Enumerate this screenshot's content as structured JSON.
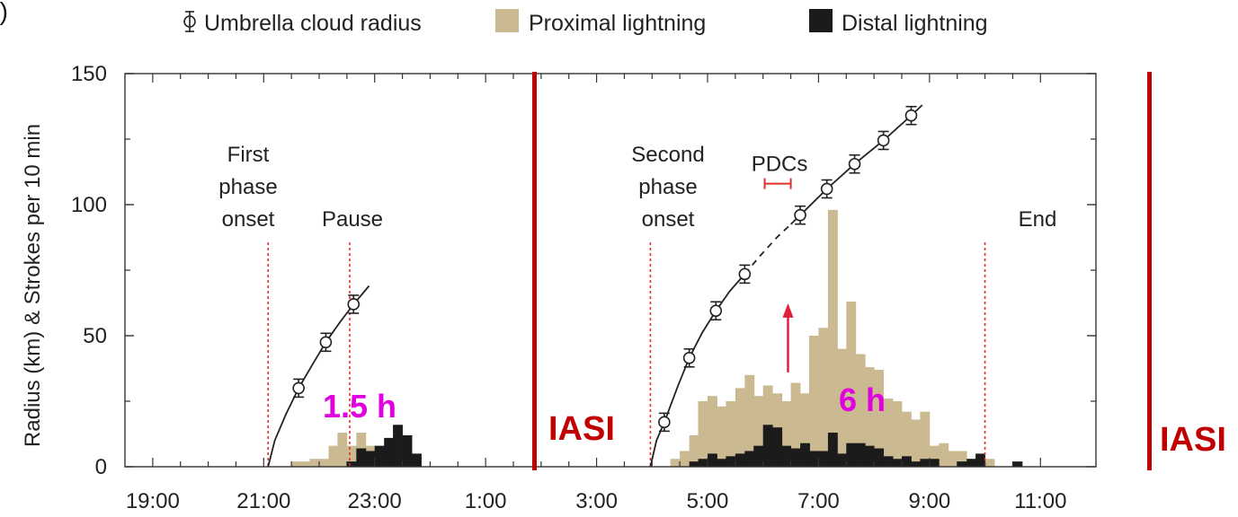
{
  "panel_label": "d)",
  "colors": {
    "proximal": "#cbb991",
    "distal": "#1b1b1b",
    "phase_line": "#e0302a",
    "iasi": "#c00000",
    "duration_text": "#e000e0",
    "arrow": "#e0203a",
    "radius": "#222222"
  },
  "legend": {
    "radius": "Umbrella cloud radius",
    "proximal": "Proximal lightning",
    "distal": "Distal lightning"
  },
  "chart_data": {
    "type": "bar",
    "ylabel": "Radius (km) & Strokes per 10 min",
    "ylim": [
      0,
      150
    ],
    "yticks": [
      0,
      50,
      100,
      150
    ],
    "xticks": [
      {
        "t": 19,
        "label": "19:00"
      },
      {
        "t": 21,
        "label": "21:00"
      },
      {
        "t": 23,
        "label": "23:00"
      },
      {
        "t": 25,
        "label": "1:00"
      },
      {
        "t": 27,
        "label": "3:00"
      },
      {
        "t": 29,
        "label": "5:00"
      },
      {
        "t": 31,
        "label": "7:00"
      },
      {
        "t": 33,
        "label": "9:00"
      },
      {
        "t": 35,
        "label": "11:00"
      }
    ],
    "bin_hours": 0.16667,
    "proximal_bins": [
      {
        "t": 21.5,
        "v": 2
      },
      {
        "t": 21.67,
        "v": 2
      },
      {
        "t": 21.83,
        "v": 3
      },
      {
        "t": 22.0,
        "v": 3
      },
      {
        "t": 22.17,
        "v": 8
      },
      {
        "t": 22.33,
        "v": 13
      },
      {
        "t": 22.5,
        "v": 8
      },
      {
        "t": 22.67,
        "v": 13
      },
      {
        "t": 22.83,
        "v": 8
      },
      {
        "t": 23.0,
        "v": 3
      },
      {
        "t": 28.33,
        "v": 3
      },
      {
        "t": 28.5,
        "v": 6
      },
      {
        "t": 28.67,
        "v": 12
      },
      {
        "t": 28.83,
        "v": 25
      },
      {
        "t": 29.0,
        "v": 27
      },
      {
        "t": 29.17,
        "v": 23
      },
      {
        "t": 29.33,
        "v": 25
      },
      {
        "t": 29.5,
        "v": 30
      },
      {
        "t": 29.67,
        "v": 35
      },
      {
        "t": 29.83,
        "v": 27
      },
      {
        "t": 30.0,
        "v": 31
      },
      {
        "t": 30.17,
        "v": 28
      },
      {
        "t": 30.33,
        "v": 25
      },
      {
        "t": 30.5,
        "v": 32
      },
      {
        "t": 30.67,
        "v": 28
      },
      {
        "t": 30.83,
        "v": 50
      },
      {
        "t": 31.0,
        "v": 53
      },
      {
        "t": 31.17,
        "v": 98
      },
      {
        "t": 31.33,
        "v": 45
      },
      {
        "t": 31.5,
        "v": 63
      },
      {
        "t": 31.67,
        "v": 43
      },
      {
        "t": 31.83,
        "v": 38
      },
      {
        "t": 32.0,
        "v": 37
      },
      {
        "t": 32.17,
        "v": 26
      },
      {
        "t": 32.33,
        "v": 25
      },
      {
        "t": 32.5,
        "v": 21
      },
      {
        "t": 32.67,
        "v": 18
      },
      {
        "t": 32.83,
        "v": 21
      },
      {
        "t": 33.0,
        "v": 8
      },
      {
        "t": 33.17,
        "v": 9
      },
      {
        "t": 33.33,
        "v": 6
      },
      {
        "t": 33.5,
        "v": 6
      },
      {
        "t": 33.67,
        "v": 3
      },
      {
        "t": 33.83,
        "v": 4
      },
      {
        "t": 34.0,
        "v": 3
      }
    ],
    "distal_bins": [
      {
        "t": 22.5,
        "v": 2
      },
      {
        "t": 22.67,
        "v": 7
      },
      {
        "t": 22.83,
        "v": 6
      },
      {
        "t": 23.0,
        "v": 8
      },
      {
        "t": 23.17,
        "v": 11
      },
      {
        "t": 23.33,
        "v": 16
      },
      {
        "t": 23.5,
        "v": 12
      },
      {
        "t": 23.67,
        "v": 5
      },
      {
        "t": 28.67,
        "v": 2
      },
      {
        "t": 28.83,
        "v": 3
      },
      {
        "t": 29.0,
        "v": 5
      },
      {
        "t": 29.17,
        "v": 3
      },
      {
        "t": 29.33,
        "v": 4
      },
      {
        "t": 29.5,
        "v": 5
      },
      {
        "t": 29.67,
        "v": 6
      },
      {
        "t": 29.83,
        "v": 8
      },
      {
        "t": 30.0,
        "v": 16
      },
      {
        "t": 30.17,
        "v": 15
      },
      {
        "t": 30.33,
        "v": 8
      },
      {
        "t": 30.5,
        "v": 7
      },
      {
        "t": 30.67,
        "v": 9
      },
      {
        "t": 30.83,
        "v": 6
      },
      {
        "t": 31.0,
        "v": 6
      },
      {
        "t": 31.17,
        "v": 13
      },
      {
        "t": 31.33,
        "v": 5
      },
      {
        "t": 31.5,
        "v": 9
      },
      {
        "t": 31.67,
        "v": 9
      },
      {
        "t": 31.83,
        "v": 8
      },
      {
        "t": 32.0,
        "v": 7
      },
      {
        "t": 32.17,
        "v": 4
      },
      {
        "t": 32.33,
        "v": 3
      },
      {
        "t": 32.5,
        "v": 4
      },
      {
        "t": 32.67,
        "v": 2
      },
      {
        "t": 32.83,
        "v": 3
      },
      {
        "t": 33.0,
        "v": 3
      },
      {
        "t": 33.5,
        "v": 2
      },
      {
        "t": 33.67,
        "v": 3
      },
      {
        "t": 33.83,
        "v": 5
      },
      {
        "t": 34.5,
        "v": 2
      }
    ],
    "radius_points": [
      {
        "t": 21.63,
        "r": 30
      },
      {
        "t": 22.12,
        "r": 47.5
      },
      {
        "t": 22.62,
        "r": 62
      },
      {
        "t": 28.22,
        "r": 17
      },
      {
        "t": 28.67,
        "r": 41.5
      },
      {
        "t": 29.15,
        "r": 59.5
      },
      {
        "t": 29.67,
        "r": 73.5
      },
      {
        "t": 30.67,
        "r": 96
      },
      {
        "t": 31.15,
        "r": 106
      },
      {
        "t": 31.65,
        "r": 115.5
      },
      {
        "t": 32.17,
        "r": 124.5
      },
      {
        "t": 32.67,
        "r": 134
      }
    ],
    "fit_first": [
      [
        21.08,
        0
      ],
      [
        21.2,
        10
      ],
      [
        21.4,
        20
      ],
      [
        21.63,
        30
      ],
      [
        21.88,
        39
      ],
      [
        22.12,
        47.5
      ],
      [
        22.37,
        55
      ],
      [
        22.62,
        62
      ],
      [
        22.9,
        69
      ]
    ],
    "fit_second_solid_a": [
      [
        27.97,
        0
      ],
      [
        28.08,
        10
      ],
      [
        28.22,
        17
      ],
      [
        28.45,
        30
      ],
      [
        28.67,
        41.5
      ],
      [
        28.9,
        51
      ],
      [
        29.15,
        59.5
      ],
      [
        29.4,
        67
      ],
      [
        29.67,
        73.5
      ]
    ],
    "fit_second_dashed": [
      [
        29.67,
        73.5
      ],
      [
        29.95,
        80.5
      ],
      [
        30.25,
        87.5
      ],
      [
        30.5,
        92.5
      ]
    ],
    "fit_second_solid_b": [
      [
        30.5,
        92.5
      ],
      [
        30.67,
        96
      ],
      [
        31.15,
        106
      ],
      [
        31.65,
        115.5
      ],
      [
        32.17,
        124.5
      ],
      [
        32.67,
        134
      ],
      [
        32.87,
        138
      ]
    ]
  },
  "phase_lines": [
    {
      "t": 21.08,
      "label": [
        "First",
        "phase",
        "onset"
      ]
    },
    {
      "t": 22.55,
      "label": [
        "Pause"
      ]
    },
    {
      "t": 27.97,
      "label": [
        "Second",
        "phase",
        "onset"
      ]
    },
    {
      "t": 34.0,
      "label": [
        "End"
      ]
    }
  ],
  "pdcs": {
    "label": "PDCs",
    "t0": 30.03,
    "t1": 30.5,
    "y": 108
  },
  "durations": {
    "first": "1.5 h",
    "second": "6 h"
  },
  "iasi": {
    "label": "IASI"
  },
  "arrow": {
    "t": 30.45,
    "y_from": 36,
    "y_to": 61
  }
}
